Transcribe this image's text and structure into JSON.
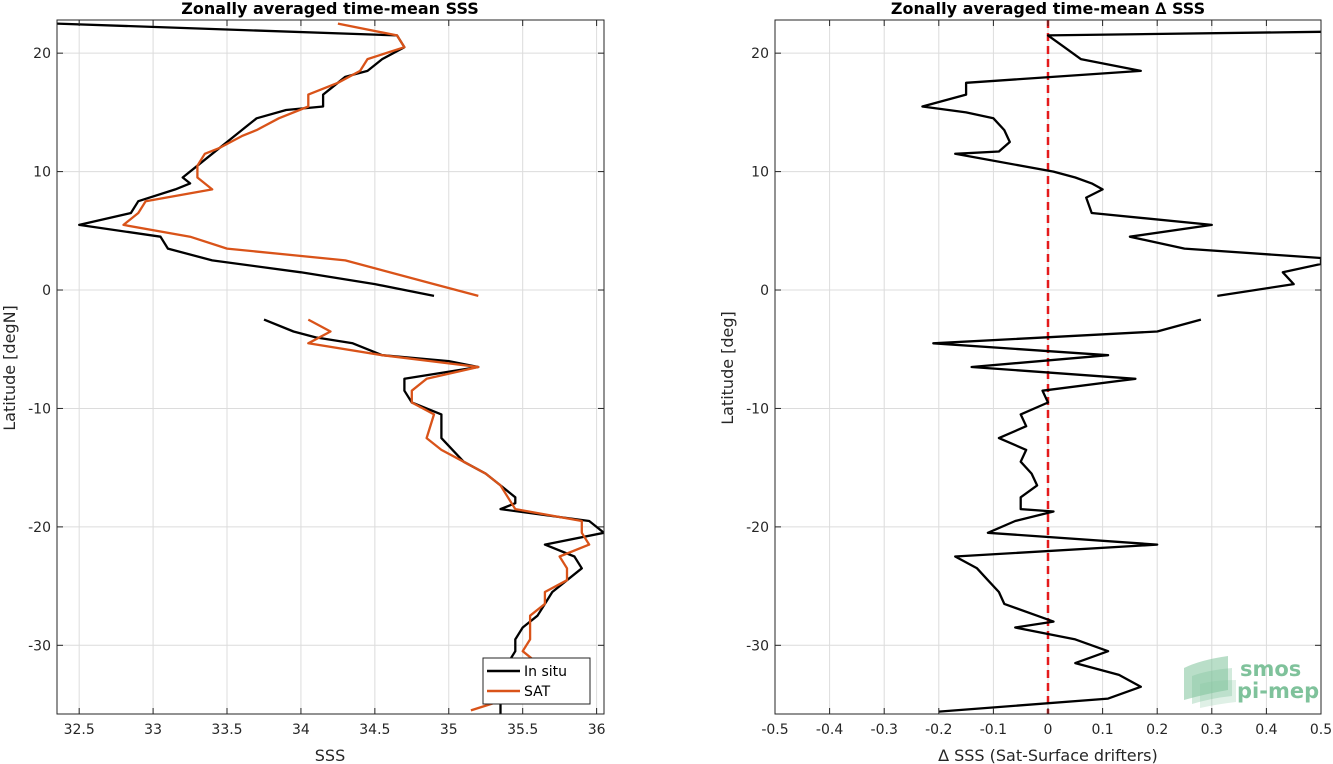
{
  "chart_data": [
    {
      "type": "line",
      "title": "Zonally averaged time-mean SSS",
      "xlabel": "SSS",
      "ylabel": "Latitude [degN]",
      "xlim": [
        32.35,
        36.05
      ],
      "ylim": [
        -35.8,
        22.8
      ],
      "xticks": [
        "32.5",
        "33",
        "33.5",
        "34",
        "34.5",
        "35",
        "35.5",
        "36"
      ],
      "xtick_values": [
        32.5,
        33,
        33.5,
        34,
        34.5,
        35,
        35.5,
        36
      ],
      "yticks": [
        "-30",
        "-20",
        "-10",
        "0",
        "10",
        "20"
      ],
      "ytick_values": [
        -30,
        -20,
        -10,
        0,
        10,
        20
      ],
      "grid": true,
      "legend_position": "bottom-right",
      "series": [
        {
          "name": "In situ",
          "color": "#000000",
          "segments": [
            [
              [
                32.35,
                22.5
              ],
              [
                34.65,
                21.5
              ],
              [
                34.7,
                20.5
              ],
              [
                34.55,
                19.5
              ],
              [
                34.45,
                18.5
              ],
              [
                34.3,
                18
              ],
              [
                34.2,
                17
              ],
              [
                34.15,
                16.5
              ],
              [
                34.15,
                15.5
              ],
              [
                33.9,
                15.2
              ],
              [
                33.7,
                14.5
              ],
              [
                33.6,
                13.5
              ],
              [
                33.5,
                12.5
              ],
              [
                33.4,
                11.5
              ],
              [
                33.3,
                10.5
              ],
              [
                33.2,
                9.5
              ],
              [
                33.25,
                9
              ],
              [
                33.15,
                8.5
              ],
              [
                32.9,
                7.5
              ],
              [
                32.85,
                6.5
              ],
              [
                32.5,
                5.5
              ],
              [
                33.05,
                4.5
              ],
              [
                33.1,
                3.5
              ],
              [
                33.4,
                2.5
              ],
              [
                34,
                1.5
              ],
              [
                34.5,
                0.5
              ],
              [
                34.9,
                -0.5
              ]
            ],
            [
              [
                33.75,
                -2.5
              ],
              [
                33.95,
                -3.5
              ],
              [
                34.1,
                -4
              ],
              [
                34.35,
                -4.5
              ],
              [
                34.55,
                -5.5
              ],
              [
                35,
                -6
              ],
              [
                35.2,
                -6.5
              ],
              [
                34.7,
                -7.5
              ],
              [
                34.7,
                -8.5
              ],
              [
                34.75,
                -9.5
              ],
              [
                34.95,
                -10.5
              ],
              [
                34.95,
                -11.5
              ],
              [
                34.95,
                -12.5
              ],
              [
                35.1,
                -14.5
              ],
              [
                35.25,
                -15.5
              ],
              [
                35.35,
                -16.5
              ],
              [
                35.45,
                -17.5
              ],
              [
                35.45,
                -18
              ],
              [
                35.35,
                -18.5
              ],
              [
                35.95,
                -19.5
              ],
              [
                36.05,
                -20.5
              ],
              [
                35.65,
                -21.5
              ],
              [
                35.85,
                -22.5
              ],
              [
                35.9,
                -23.5
              ],
              [
                35.8,
                -24.5
              ],
              [
                35.7,
                -25.5
              ],
              [
                35.65,
                -26.5
              ],
              [
                35.6,
                -27.5
              ],
              [
                35.5,
                -28.5
              ],
              [
                35.45,
                -29.5
              ],
              [
                35.45,
                -30.5
              ],
              [
                35.4,
                -31.5
              ]
            ],
            [
              [
                35.35,
                -34.5
              ],
              [
                35.35,
                -35.8
              ]
            ]
          ]
        },
        {
          "name": "SAT",
          "color": "#d95319",
          "segments": [
            [
              [
                34.25,
                22.5
              ],
              [
                34.65,
                21.5
              ],
              [
                34.7,
                20.5
              ],
              [
                34.45,
                19.5
              ],
              [
                34.4,
                18.5
              ],
              [
                34.25,
                17.5
              ],
              [
                34.05,
                16.5
              ],
              [
                34.05,
                15.5
              ],
              [
                33.85,
                14.5
              ],
              [
                33.7,
                13.5
              ],
              [
                33.6,
                13
              ],
              [
                33.45,
                12
              ],
              [
                33.35,
                11.5
              ],
              [
                33.3,
                10.5
              ],
              [
                33.3,
                9.5
              ],
              [
                33.4,
                8.5
              ],
              [
                32.95,
                7.5
              ],
              [
                32.9,
                6.5
              ],
              [
                32.8,
                5.5
              ],
              [
                33.25,
                4.5
              ],
              [
                33.5,
                3.5
              ],
              [
                34.3,
                2.5
              ],
              [
                34.9,
                0.5
              ],
              [
                35.2,
                -0.5
              ]
            ],
            [
              [
                34.05,
                -2.5
              ],
              [
                34.2,
                -3.5
              ],
              [
                34.05,
                -4.5
              ],
              [
                34.55,
                -5.5
              ],
              [
                35.2,
                -6.5
              ],
              [
                34.85,
                -7.5
              ],
              [
                34.75,
                -8.5
              ],
              [
                34.75,
                -9.5
              ],
              [
                34.9,
                -10.5
              ],
              [
                34.85,
                -12.5
              ],
              [
                34.95,
                -13.5
              ],
              [
                35.1,
                -14.5
              ],
              [
                35.25,
                -15.5
              ],
              [
                35.35,
                -16.5
              ],
              [
                35.4,
                -17.5
              ],
              [
                35.45,
                -18.5
              ],
              [
                35.9,
                -19.5
              ],
              [
                35.9,
                -20.5
              ],
              [
                35.95,
                -21.5
              ],
              [
                35.75,
                -22.5
              ],
              [
                35.8,
                -23.5
              ],
              [
                35.8,
                -24.5
              ],
              [
                35.65,
                -25.5
              ],
              [
                35.65,
                -26.5
              ],
              [
                35.55,
                -27.5
              ],
              [
                35.55,
                -28.5
              ],
              [
                35.55,
                -29.5
              ],
              [
                35.5,
                -30.5
              ],
              [
                35.6,
                -31.5
              ]
            ],
            [
              [
                35.4,
                -34.5
              ],
              [
                35.15,
                -35.5
              ]
            ]
          ]
        }
      ]
    },
    {
      "type": "line",
      "title": "Zonally averaged time-mean ∆ SSS",
      "xlabel": "∆ SSS (Sat-Surface drifters)",
      "ylabel": "Latitude [deg]",
      "xlim": [
        -0.5,
        0.5
      ],
      "ylim": [
        -35.8,
        22.8
      ],
      "xticks": [
        "-0.5",
        "-0.4",
        "-0.3",
        "-0.2",
        "-0.1",
        "0",
        "0.1",
        "0.2",
        "0.3",
        "0.4",
        "0.5"
      ],
      "xtick_values": [
        -0.5,
        -0.4,
        -0.3,
        -0.2,
        -0.1,
        0,
        0.1,
        0.2,
        0.3,
        0.4,
        0.5
      ],
      "yticks": [
        "-30",
        "-20",
        "-10",
        "0",
        "10",
        "20"
      ],
      "ytick_values": [
        -30,
        -20,
        -10,
        0,
        10,
        20
      ],
      "grid": true,
      "reference_line": {
        "x": 0,
        "color": "#e41a1c",
        "style": "dashed"
      },
      "series": [
        {
          "color": "#000000",
          "segments": [
            [
              [
                0.5,
                21.8
              ],
              [
                0,
                21.5
              ],
              [
                0.03,
                20.5
              ],
              [
                0.06,
                19.5
              ],
              [
                0.17,
                18.5
              ],
              [
                -0.15,
                17.5
              ],
              [
                -0.15,
                16.5
              ],
              [
                -0.23,
                15.5
              ],
              [
                -0.15,
                15
              ],
              [
                -0.1,
                14.5
              ],
              [
                -0.08,
                13.5
              ],
              [
                -0.07,
                12.5
              ],
              [
                -0.09,
                11.7
              ],
              [
                -0.17,
                11.5
              ],
              [
                0.01,
                10
              ],
              [
                0.05,
                9.5
              ],
              [
                0.08,
                9
              ],
              [
                0.1,
                8.5
              ],
              [
                0.07,
                7.8
              ],
              [
                0.08,
                6.5
              ],
              [
                0.3,
                5.5
              ],
              [
                0.15,
                4.5
              ],
              [
                0.25,
                3.5
              ],
              [
                0.5,
                2.7
              ],
              [
                0.5,
                2.2
              ],
              [
                0.43,
                1.5
              ],
              [
                0.45,
                0.5
              ],
              [
                0.31,
                -0.5
              ]
            ],
            [
              [
                0.28,
                -2.5
              ],
              [
                0.2,
                -3.5
              ],
              [
                -0.21,
                -4.5
              ],
              [
                0.11,
                -5.5
              ],
              [
                -0.14,
                -6.5
              ],
              [
                0.16,
                -7.5
              ],
              [
                -0.01,
                -8.5
              ],
              [
                0.0,
                -9.5
              ],
              [
                -0.05,
                -10.5
              ],
              [
                -0.04,
                -11.5
              ],
              [
                -0.09,
                -12.5
              ],
              [
                -0.04,
                -13.5
              ],
              [
                -0.05,
                -14.5
              ],
              [
                -0.03,
                -15.5
              ],
              [
                -0.02,
                -16.5
              ],
              [
                -0.05,
                -17.5
              ],
              [
                -0.05,
                -18.5
              ],
              [
                0.01,
                -18.7
              ],
              [
                -0.06,
                -19.5
              ],
              [
                -0.11,
                -20.5
              ],
              [
                0.2,
                -21.5
              ],
              [
                -0.17,
                -22.5
              ],
              [
                -0.13,
                -23.5
              ],
              [
                -0.11,
                -24.5
              ],
              [
                -0.09,
                -25.5
              ],
              [
                -0.08,
                -26.5
              ],
              [
                -0.02,
                -27.5
              ],
              [
                0.01,
                -28
              ],
              [
                -0.06,
                -28.5
              ],
              [
                0.05,
                -29.5
              ],
              [
                0.11,
                -30.5
              ],
              [
                0.05,
                -31.5
              ],
              [
                0.13,
                -32.5
              ],
              [
                0.17,
                -33.5
              ],
              [
                0.11,
                -34.5
              ],
              [
                -0.2,
                -35.6
              ]
            ]
          ]
        }
      ]
    }
  ],
  "legend": {
    "items": [
      {
        "label": "In situ",
        "color": "#000000"
      },
      {
        "label": "SAT",
        "color": "#d95319"
      }
    ]
  },
  "logo": {
    "line1": "smos",
    "line2": "pi-mep",
    "color": "#7fc29b"
  }
}
